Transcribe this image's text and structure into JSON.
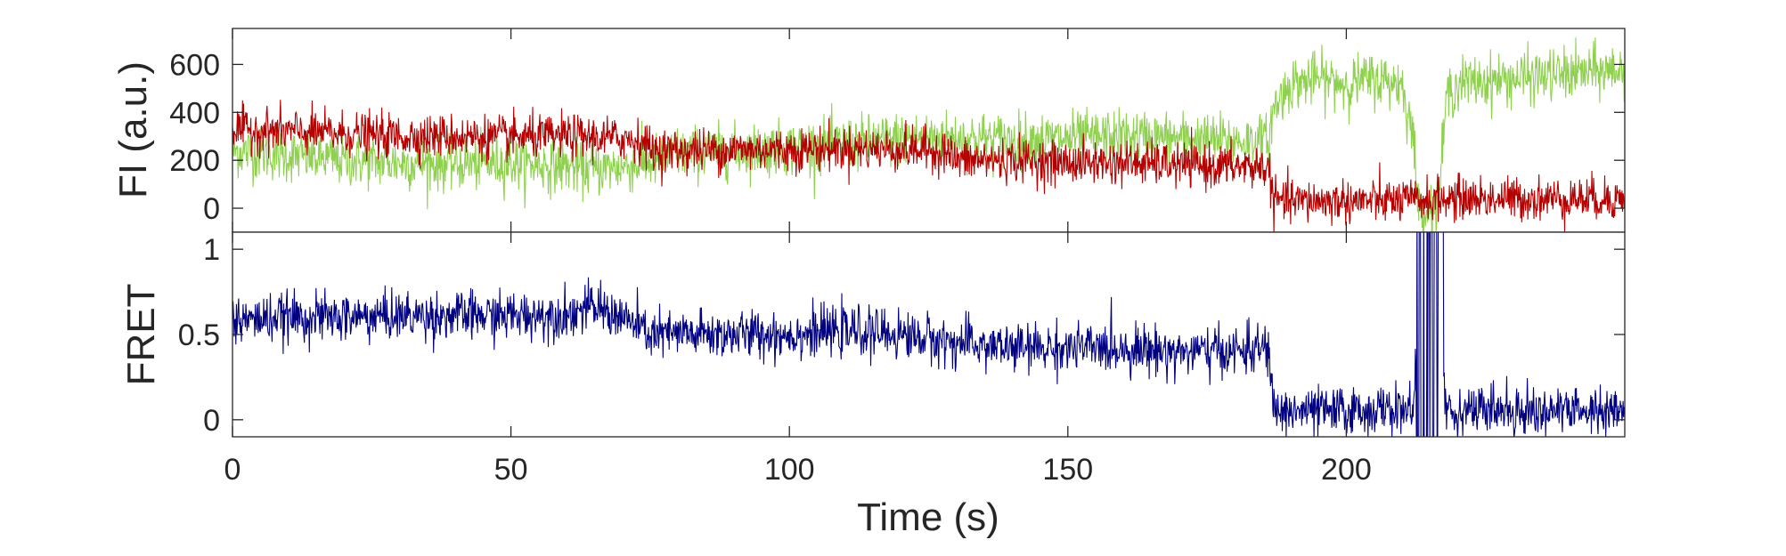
{
  "chart_data": [
    {
      "type": "line",
      "title": "",
      "xlabel": "",
      "ylabel": "FI (a.u.)",
      "xlim": [
        0,
        250
      ],
      "ylim": [
        -100,
        750
      ],
      "yticks": [
        0,
        200,
        400,
        600
      ],
      "ytick_labels": [
        "0",
        "200",
        "400",
        "600"
      ],
      "grid": false,
      "series": [
        {
          "color": "#8fd14f",
          "x": [
            0,
            10,
            20,
            30,
            40,
            50,
            60,
            65,
            70,
            75,
            80,
            90,
            100,
            110,
            120,
            130,
            140,
            150,
            160,
            170,
            180,
            186,
            187,
            190,
            195,
            200,
            205,
            210,
            212,
            213,
            214,
            215,
            216,
            217,
            218,
            220,
            230,
            240,
            250
          ],
          "values": [
            240,
            220,
            200,
            190,
            185,
            190,
            175,
            160,
            175,
            190,
            230,
            240,
            250,
            270,
            290,
            295,
            285,
            290,
            300,
            290,
            280,
            280,
            420,
            520,
            540,
            520,
            540,
            520,
            300,
            0,
            0,
            0,
            0,
            150,
            470,
            520,
            540,
            560,
            580
          ],
          "noise": 55
        },
        {
          "color": "#b50000",
          "x": [
            0,
            10,
            20,
            30,
            40,
            50,
            60,
            70,
            74,
            75,
            80,
            90,
            100,
            110,
            120,
            128,
            130,
            140,
            150,
            160,
            170,
            180,
            186,
            187,
            190,
            200,
            210,
            220,
            230,
            240,
            250
          ],
          "values": [
            330,
            320,
            310,
            300,
            300,
            295,
            300,
            290,
            280,
            240,
            240,
            245,
            245,
            250,
            245,
            240,
            200,
            200,
            190,
            190,
            180,
            175,
            170,
            30,
            30,
            30,
            30,
            40,
            40,
            40,
            40
          ],
          "noise": 45
        }
      ]
    },
    {
      "type": "line",
      "title": "",
      "xlabel": "Time (s)",
      "ylabel": "FRET",
      "xlim": [
        0,
        250
      ],
      "ylim": [
        -0.1,
        1.1
      ],
      "xticks": [
        0,
        50,
        100,
        150,
        200
      ],
      "xtick_labels": [
        "0",
        "50",
        "100",
        "150",
        "200"
      ],
      "yticks": [
        0,
        0.5,
        1
      ],
      "ytick_labels": [
        "0",
        "0.5",
        "1"
      ],
      "grid": false,
      "series": [
        {
          "color": "#000080",
          "x": [
            0,
            10,
            20,
            30,
            40,
            50,
            60,
            65,
            70,
            75,
            80,
            90,
            100,
            110,
            120,
            130,
            140,
            150,
            160,
            170,
            180,
            186,
            187,
            200,
            210,
            212,
            213,
            217,
            218,
            230,
            240,
            250
          ],
          "values": [
            0.58,
            0.6,
            0.6,
            0.61,
            0.61,
            0.61,
            0.62,
            0.66,
            0.6,
            0.5,
            0.5,
            0.5,
            0.5,
            0.52,
            0.5,
            0.45,
            0.42,
            0.42,
            0.42,
            0.4,
            0.4,
            0.42,
            0.05,
            0.05,
            0.06,
            0.06,
            0.5,
            0.5,
            0.06,
            0.06,
            0.05,
            0.05
          ],
          "noise": 0.07
        }
      ]
    }
  ]
}
